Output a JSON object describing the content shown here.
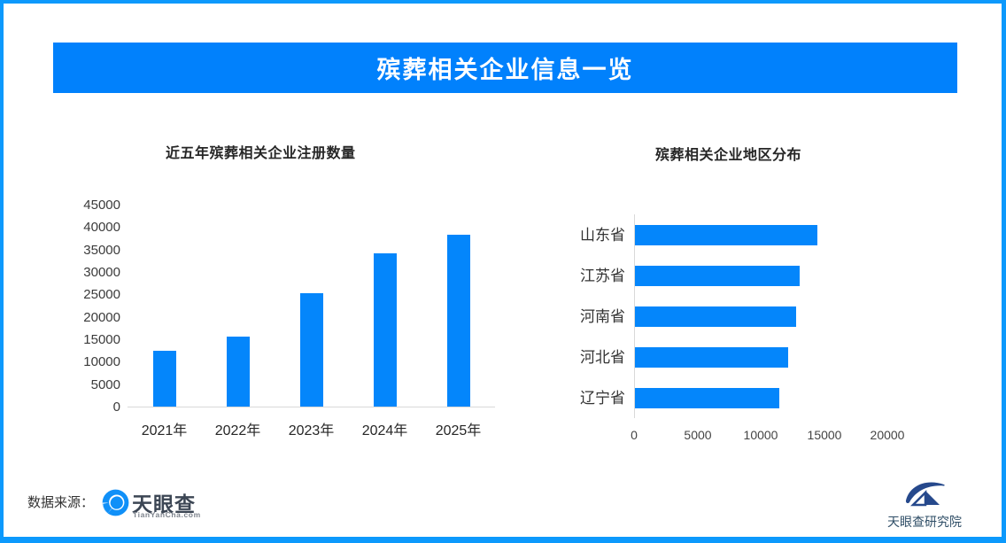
{
  "banner": {
    "title": "殡葬相关企业信息一览"
  },
  "colors": {
    "frame": "#0c99fc",
    "banner": "#0181fc",
    "bar": "#0486fb",
    "axis_line": "#d9d9d9",
    "title_text": "#262626",
    "logo_name": "#3c4654",
    "logo_sub": "#7d838c",
    "research_navy": "#26498c"
  },
  "chart_data": [
    {
      "type": "bar",
      "orientation": "vertical",
      "title": "近五年殡葬相关企业注册数量",
      "categories": [
        "2021年",
        "2022年",
        "2023年",
        "2024年",
        "2025年"
      ],
      "values": [
        12500,
        15500,
        25200,
        34200,
        38200
      ],
      "xlabel": "",
      "ylabel": "",
      "ylim": [
        0,
        45000
      ],
      "yticks": [
        45000,
        40000,
        35000,
        30000,
        25000,
        20000,
        15000,
        10000,
        5000,
        0
      ],
      "grid": false,
      "legend": false
    },
    {
      "type": "bar",
      "orientation": "horizontal",
      "title": "殡葬相关企业地区分布",
      "categories": [
        "山东省",
        "江苏省",
        "河南省",
        "河北省",
        "辽宁省"
      ],
      "values": [
        14400,
        13000,
        12700,
        12100,
        11400
      ],
      "xlabel": "",
      "ylabel": "",
      "xlim": [
        0,
        25000
      ],
      "xticks": [
        0,
        5000,
        10000,
        15000,
        20000
      ],
      "grid": false,
      "legend": false
    }
  ],
  "footer": {
    "source_label": "数据来源：",
    "logo_name": "天眼查",
    "logo_sub": "TianYanCha.com",
    "research_name": "天眼查研究院"
  }
}
